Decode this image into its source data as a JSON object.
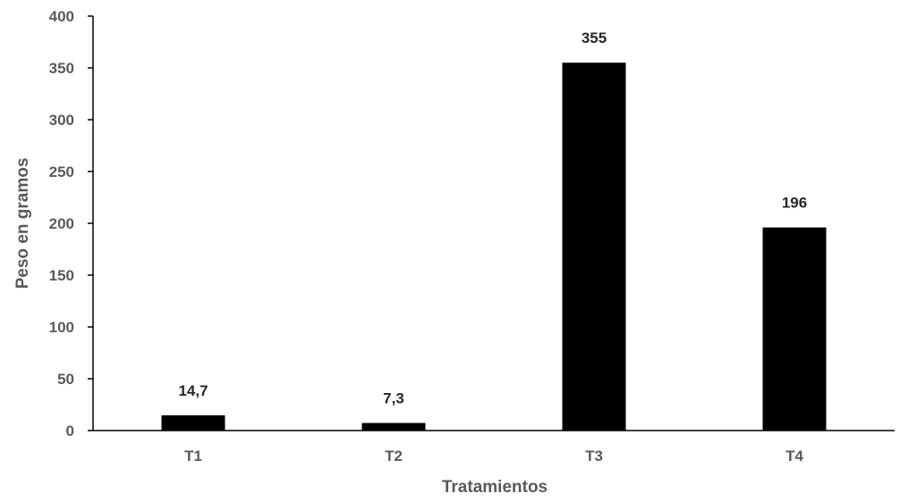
{
  "chart_data": {
    "type": "bar",
    "categories": [
      "T1",
      "T2",
      "T3",
      "T4"
    ],
    "values": [
      14.7,
      7.3,
      355,
      196
    ],
    "value_labels": [
      "14,7",
      "7,3",
      "355",
      "196"
    ],
    "title": "",
    "xlabel": "Tratamientos",
    "ylabel": "Peso en gramos",
    "ylim": [
      0,
      400
    ],
    "yticks": [
      0,
      50,
      100,
      150,
      200,
      250,
      300,
      350,
      400
    ],
    "grid": false,
    "legend": "none",
    "bar_color": "#000000",
    "axis_color": "#000000",
    "text_color": "#595959"
  }
}
